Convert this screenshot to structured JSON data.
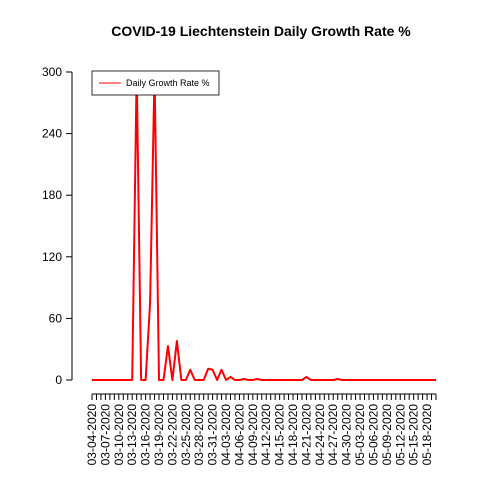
{
  "chart_data": {
    "type": "line",
    "title": "COVID-19 Liechtenstein Daily Growth Rate %",
    "xlabel": "",
    "ylabel": "",
    "ylim": [
      0,
      300
    ],
    "yticks": [
      "0",
      "60",
      "120",
      "180",
      "240",
      "300"
    ],
    "ytick_values": [
      0,
      60,
      120,
      180,
      240,
      300
    ],
    "x_tick_labels": [
      "03-04-2020",
      "03-07-2020",
      "03-10-2020",
      "03-13-2020",
      "03-16-2020",
      "03-19-2020",
      "03-22-2020",
      "03-25-2020",
      "03-28-2020",
      "03-31-2020",
      "04-03-2020",
      "04-06-2020",
      "04-09-2020",
      "04-12-2020",
      "04-15-2020",
      "04-18-2020",
      "04-21-2020",
      "04-24-2020",
      "04-27-2020",
      "04-30-2020",
      "05-03-2020",
      "05-06-2020",
      "05-09-2020",
      "05-12-2020",
      "05-15-2020",
      "05-18-2020"
    ],
    "x_tick_every": 3,
    "grid": false,
    "legend": {
      "position": "top-left",
      "entries": [
        "Daily Growth Rate %"
      ]
    },
    "series": [
      {
        "name": "Daily Growth Rate %",
        "color": "#ff0000",
        "x": [
          "03-04-2020",
          "03-05-2020",
          "03-06-2020",
          "03-07-2020",
          "03-08-2020",
          "03-09-2020",
          "03-10-2020",
          "03-11-2020",
          "03-12-2020",
          "03-13-2020",
          "03-14-2020",
          "03-15-2020",
          "03-16-2020",
          "03-17-2020",
          "03-18-2020",
          "03-19-2020",
          "03-20-2020",
          "03-21-2020",
          "03-22-2020",
          "03-23-2020",
          "03-24-2020",
          "03-25-2020",
          "03-26-2020",
          "03-27-2020",
          "03-28-2020",
          "03-29-2020",
          "03-30-2020",
          "03-31-2020",
          "04-01-2020",
          "04-02-2020",
          "04-03-2020",
          "04-04-2020",
          "04-05-2020",
          "04-06-2020",
          "04-07-2020",
          "04-08-2020",
          "04-09-2020",
          "04-10-2020",
          "04-11-2020",
          "04-12-2020",
          "04-13-2020",
          "04-14-2020",
          "04-15-2020",
          "04-16-2020",
          "04-17-2020",
          "04-18-2020",
          "04-19-2020",
          "04-20-2020",
          "04-21-2020",
          "04-22-2020",
          "04-23-2020",
          "04-24-2020",
          "04-25-2020",
          "04-26-2020",
          "04-27-2020",
          "04-28-2020",
          "04-29-2020",
          "04-30-2020",
          "05-01-2020",
          "05-02-2020",
          "05-03-2020",
          "05-04-2020",
          "05-05-2020",
          "05-06-2020",
          "05-07-2020",
          "05-08-2020",
          "05-09-2020",
          "05-10-2020",
          "05-11-2020",
          "05-12-2020",
          "05-13-2020",
          "05-14-2020",
          "05-15-2020",
          "05-16-2020",
          "05-17-2020",
          "05-18-2020",
          "05-19-2020",
          "05-20-2020"
        ],
        "values": [
          0,
          0,
          0,
          0,
          0,
          0,
          0,
          0,
          0,
          0,
          300,
          0,
          0,
          75,
          300,
          0,
          0,
          33,
          0,
          38,
          0,
          0,
          10,
          0,
          0,
          0,
          11,
          10,
          0,
          10,
          0,
          3,
          0,
          0,
          1,
          0,
          0,
          1,
          0,
          0,
          0,
          0,
          0,
          0,
          0,
          0,
          0,
          0,
          3,
          0,
          0,
          0,
          0,
          0,
          0,
          1,
          0,
          0,
          0,
          0,
          0,
          0,
          0,
          0,
          0,
          0,
          0,
          0,
          0,
          0,
          0,
          0,
          0,
          0,
          0,
          0,
          0,
          0
        ]
      }
    ]
  }
}
